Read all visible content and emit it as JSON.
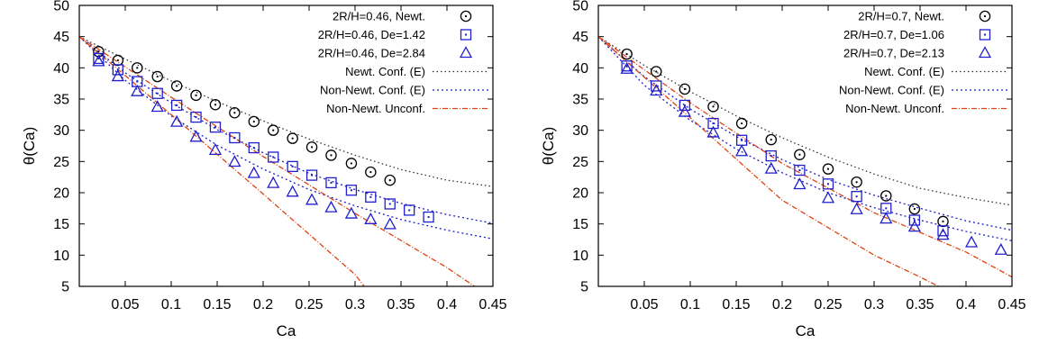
{
  "chart_data": [
    {
      "type": "scatter",
      "title": "",
      "xlabel": "Ca",
      "ylabel": "θ(Ca)",
      "xlim": [
        0,
        0.45
      ],
      "ylim": [
        5,
        50
      ],
      "xticks": [
        0.05,
        0.1,
        0.15,
        0.2,
        0.25,
        0.3,
        0.35,
        0.4,
        0.45
      ],
      "xtick_labels": [
        "0.05",
        "0.1",
        "0.15",
        "0.2",
        "0.25",
        "0.3",
        "0.35",
        "0.4",
        "0.45"
      ],
      "yticks": [
        5,
        10,
        15,
        20,
        25,
        30,
        35,
        40,
        45,
        50
      ],
      "ytick_labels": [
        "5",
        "10",
        "15",
        "20",
        "25",
        "30",
        "35",
        "40",
        "45",
        "50"
      ],
      "grid": false,
      "legend_position": "top-right",
      "series": [
        {
          "name": "2R/H=0.46, Newt.",
          "kind": "points",
          "marker": "circle",
          "color": "#000000",
          "x": [
            0.021,
            0.042,
            0.063,
            0.085,
            0.106,
            0.127,
            0.148,
            0.169,
            0.19,
            0.211,
            0.232,
            0.253,
            0.274,
            0.296,
            0.317,
            0.338
          ],
          "y": [
            42.6,
            41.2,
            40.0,
            38.6,
            37.1,
            35.6,
            34.1,
            32.8,
            31.4,
            30.0,
            28.7,
            27.3,
            26.0,
            24.7,
            23.3,
            22.0
          ]
        },
        {
          "name": "2R/H=0.46, De=1.42",
          "kind": "points",
          "marker": "square",
          "color": "#1f1fcc",
          "x": [
            0.021,
            0.042,
            0.063,
            0.085,
            0.106,
            0.127,
            0.148,
            0.169,
            0.19,
            0.211,
            0.232,
            0.253,
            0.274,
            0.296,
            0.317,
            0.338,
            0.359,
            0.38
          ],
          "y": [
            41.5,
            39.7,
            37.8,
            35.9,
            34.0,
            32.1,
            30.5,
            28.8,
            27.2,
            25.7,
            24.2,
            22.8,
            21.6,
            20.4,
            19.3,
            18.2,
            17.2,
            16.1
          ]
        },
        {
          "name": "2R/H=0.46, De=2.84",
          "kind": "points",
          "marker": "triangle",
          "color": "#1f1fcc",
          "x": [
            0.021,
            0.042,
            0.063,
            0.085,
            0.106,
            0.127,
            0.148,
            0.169,
            0.19,
            0.211,
            0.232,
            0.253,
            0.274,
            0.296,
            0.317,
            0.338
          ],
          "y": [
            41.0,
            38.6,
            36.2,
            33.7,
            31.3,
            28.9,
            26.8,
            24.9,
            23.1,
            21.5,
            20.1,
            18.8,
            17.6,
            16.6,
            15.7,
            14.9
          ]
        },
        {
          "name": "Newt. Conf. (E)",
          "kind": "line",
          "dash": "1.5 3",
          "color": "#333333",
          "x": [
            0,
            0.05,
            0.1,
            0.15,
            0.2,
            0.25,
            0.3,
            0.35,
            0.4,
            0.45
          ],
          "y": [
            45.0,
            41.4,
            37.9,
            34.6,
            31.5,
            28.6,
            26.0,
            23.7,
            22.0,
            21.0
          ]
        },
        {
          "name": "Non-Newt. Conf. (E)",
          "kind": "line",
          "dash": "2 3",
          "color": "#1f1fcc",
          "x": [
            0,
            0.05,
            0.1,
            0.15,
            0.2,
            0.25,
            0.3,
            0.35,
            0.4,
            0.45
          ],
          "y": [
            45.0,
            39.2,
            34.4,
            30.1,
            26.4,
            23.1,
            20.5,
            18.3,
            16.5,
            15.1
          ]
        },
        {
          "name": "",
          "kind": "line",
          "dash": "2 3",
          "color": "#1f1fcc",
          "x": [
            0,
            0.05,
            0.1,
            0.15,
            0.2,
            0.25,
            0.3,
            0.35,
            0.4,
            0.45
          ],
          "y": [
            45.0,
            38.0,
            32.3,
            27.6,
            23.8,
            20.5,
            17.9,
            15.7,
            14.0,
            12.6
          ]
        },
        {
          "name": "Non-Newt. Unconf.",
          "kind": "line",
          "dash": "6 2 1 2",
          "color": "#dd4411",
          "x": [
            0,
            0.1,
            0.2,
            0.3,
            0.31
          ],
          "y": [
            45.0,
            32.5,
            19.8,
            6.9,
            5.0
          ]
        },
        {
          "name": "",
          "kind": "line",
          "dash": "6 2 1 2",
          "color": "#dd4411",
          "x": [
            0,
            0.1,
            0.2,
            0.3,
            0.4,
            0.43
          ],
          "y": [
            45.0,
            35.3,
            25.8,
            16.7,
            8.0,
            5.0
          ]
        }
      ]
    },
    {
      "type": "scatter",
      "title": "",
      "xlabel": "Ca",
      "ylabel": "θ(Ca)",
      "xlim": [
        0,
        0.45
      ],
      "ylim": [
        5,
        50
      ],
      "xticks": [
        0.05,
        0.1,
        0.15,
        0.2,
        0.25,
        0.3,
        0.35,
        0.4,
        0.45
      ],
      "xtick_labels": [
        "0.05",
        "0.1",
        "0.15",
        "0.2",
        "0.25",
        "0.3",
        "0.35",
        "0.4",
        "0.45"
      ],
      "yticks": [
        5,
        10,
        15,
        20,
        25,
        30,
        35,
        40,
        45,
        50
      ],
      "ytick_labels": [
        "5",
        "10",
        "15",
        "20",
        "25",
        "30",
        "35",
        "40",
        "45",
        "50"
      ],
      "grid": false,
      "legend_position": "top-right",
      "series": [
        {
          "name": "2R/H=0.7, Newt.",
          "kind": "points",
          "marker": "circle",
          "color": "#000000",
          "x": [
            0.031,
            0.063,
            0.094,
            0.125,
            0.156,
            0.188,
            0.219,
            0.25,
            0.281,
            0.313,
            0.344,
            0.375
          ],
          "y": [
            42.2,
            39.4,
            36.6,
            33.8,
            31.1,
            28.5,
            26.1,
            23.8,
            21.7,
            19.5,
            17.4,
            15.4
          ]
        },
        {
          "name": "2R/H=0.7, De=1.06",
          "kind": "points",
          "marker": "square",
          "color": "#1f1fcc",
          "x": [
            0.031,
            0.063,
            0.094,
            0.125,
            0.156,
            0.188,
            0.219,
            0.25,
            0.281,
            0.313,
            0.344,
            0.375
          ],
          "y": [
            40.3,
            37.1,
            34.0,
            31.1,
            28.4,
            25.9,
            23.6,
            21.4,
            19.4,
            17.5,
            15.6,
            13.9
          ]
        },
        {
          "name": "2R/H=0.7, De=2.13",
          "kind": "points",
          "marker": "triangle",
          "color": "#1f1fcc",
          "x": [
            0.031,
            0.063,
            0.094,
            0.125,
            0.156,
            0.188,
            0.219,
            0.25,
            0.281,
            0.313,
            0.344,
            0.375,
            0.406,
            0.438
          ],
          "y": [
            39.8,
            36.3,
            32.9,
            29.6,
            26.6,
            23.8,
            21.3,
            19.1,
            17.3,
            15.8,
            14.5,
            13.2,
            12.0,
            10.8
          ]
        },
        {
          "name": "Newt. Conf. (E)",
          "kind": "line",
          "dash": "1.5 3",
          "color": "#333333",
          "x": [
            0,
            0.05,
            0.1,
            0.15,
            0.2,
            0.25,
            0.3,
            0.35,
            0.4,
            0.45
          ],
          "y": [
            45.0,
            40.4,
            36.2,
            32.3,
            28.8,
            25.7,
            23.0,
            20.7,
            19.2,
            18.0
          ]
        },
        {
          "name": "Non-Newt. Conf. (E)",
          "kind": "line",
          "dash": "2 3",
          "color": "#1f1fcc",
          "x": [
            0,
            0.05,
            0.1,
            0.15,
            0.2,
            0.25,
            0.3,
            0.35,
            0.4,
            0.45
          ],
          "y": [
            45.0,
            38.6,
            33.4,
            29.0,
            25.3,
            22.1,
            19.6,
            17.5,
            15.5,
            14.0
          ]
        },
        {
          "name": "",
          "kind": "line",
          "dash": "2 3",
          "color": "#1f1fcc",
          "x": [
            0,
            0.05,
            0.1,
            0.15,
            0.2,
            0.25,
            0.3,
            0.35,
            0.4,
            0.45
          ],
          "y": [
            45.0,
            37.2,
            31.6,
            27.0,
            23.2,
            20.0,
            17.6,
            15.6,
            13.8,
            12.3
          ]
        },
        {
          "name": "Non-Newt. Unconf.",
          "kind": "line",
          "dash": "6 2 1 2",
          "color": "#dd4411",
          "x": [
            0,
            0.1,
            0.2,
            0.3,
            0.35,
            0.37
          ],
          "y": [
            45.0,
            32.0,
            18.8,
            10.0,
            6.5,
            5.0
          ]
        },
        {
          "name": "",
          "kind": "line",
          "dash": "6 2 1 2",
          "color": "#dd4411",
          "x": [
            0,
            0.1,
            0.2,
            0.3,
            0.4,
            0.45
          ],
          "y": [
            45.0,
            34.4,
            24.7,
            16.8,
            10.5,
            6.5
          ]
        }
      ]
    }
  ]
}
